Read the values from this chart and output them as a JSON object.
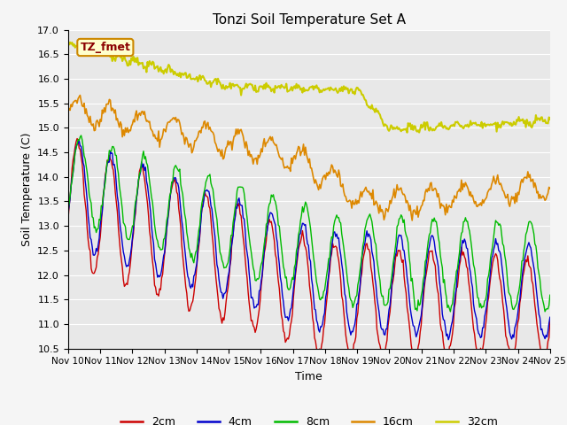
{
  "title": "Tonzi Soil Temperature Set A",
  "xlabel": "Time",
  "ylabel": "Soil Temperature (C)",
  "ylim": [
    10.5,
    17.0
  ],
  "annotation": "TZ_fmet",
  "fig_bg_color": "#f5f5f5",
  "plot_bg_color": "#e8e8e8",
  "series_colors": {
    "2cm": "#cc0000",
    "4cm": "#0000cc",
    "8cm": "#00bb00",
    "16cm": "#dd8800",
    "32cm": "#cccc00"
  },
  "x_ticks": [
    "Nov 10",
    "Nov 11",
    "Nov 12",
    "Nov 13",
    "Nov 14",
    "Nov 15",
    "Nov 16",
    "Nov 17",
    "Nov 18",
    "Nov 19",
    "Nov 20",
    "Nov 21",
    "Nov 22",
    "Nov 23",
    "Nov 24",
    "Nov 25"
  ],
  "n_points": 480
}
